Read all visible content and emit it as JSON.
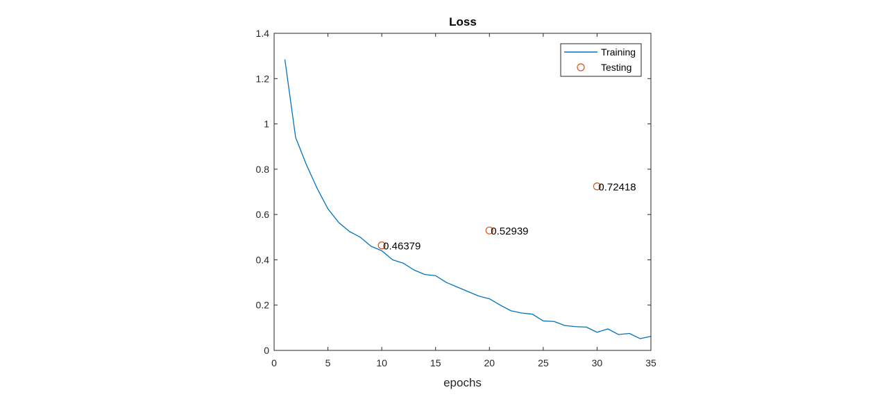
{
  "chart_data": {
    "type": "line",
    "title": "Loss",
    "xlabel": "epochs",
    "ylabel": "",
    "xlim": [
      0,
      35
    ],
    "ylim": [
      0,
      1.4
    ],
    "xticks": [
      0,
      5,
      10,
      15,
      20,
      25,
      30,
      35
    ],
    "xtick_labels": [
      "0",
      "5",
      "10",
      "15",
      "20",
      "25",
      "30",
      "35"
    ],
    "yticks": [
      0,
      0.2,
      0.4,
      0.6,
      0.8,
      1.0,
      1.2,
      1.4
    ],
    "ytick_labels": [
      "0",
      "0.2",
      "0.4",
      "0.6",
      "0.8",
      "1",
      "1.2",
      "1.4"
    ],
    "grid": false,
    "legend_position": "top-right",
    "series": [
      {
        "name": "Training",
        "kind": "line",
        "color": "#0072BD",
        "x": [
          1,
          2,
          3,
          4,
          5,
          6,
          7,
          8,
          9,
          10,
          11,
          12,
          13,
          14,
          15,
          16,
          17,
          18,
          19,
          20,
          21,
          22,
          23,
          24,
          25,
          26,
          27,
          28,
          29,
          30,
          31,
          32,
          33,
          34,
          35
        ],
        "y": [
          1.285,
          0.94,
          0.82,
          0.715,
          0.625,
          0.565,
          0.525,
          0.5,
          0.46,
          0.44,
          0.4,
          0.385,
          0.355,
          0.335,
          0.33,
          0.3,
          0.28,
          0.26,
          0.24,
          0.228,
          0.2,
          0.175,
          0.165,
          0.16,
          0.13,
          0.128,
          0.11,
          0.105,
          0.103,
          0.08,
          0.095,
          0.07,
          0.075,
          0.052,
          0.062
        ]
      },
      {
        "name": "Testing",
        "kind": "scatter",
        "color": "#D95319",
        "x": [
          10,
          20,
          30
        ],
        "y": [
          0.46379,
          0.52939,
          0.72418
        ],
        "labels": [
          "0.46379",
          "0.52939",
          "0.72418"
        ]
      }
    ]
  }
}
